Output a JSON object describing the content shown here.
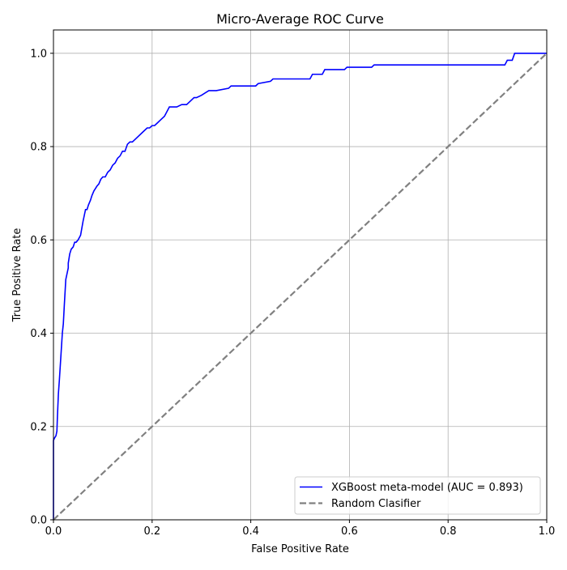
{
  "chart_data": {
    "type": "line",
    "title": "Micro-Average ROC Curve",
    "xlabel": "False Positive Rate",
    "ylabel": "True Positive Rate",
    "xlim": [
      0.0,
      1.0
    ],
    "ylim": [
      0.0,
      1.05
    ],
    "x_ticks": [
      0.0,
      0.2,
      0.4,
      0.6,
      0.8,
      1.0
    ],
    "y_ticks": [
      0.0,
      0.2,
      0.4,
      0.6,
      0.8,
      1.0
    ],
    "x_tick_labels": [
      "0.0",
      "0.2",
      "0.4",
      "0.6",
      "0.8",
      "1.0"
    ],
    "y_tick_labels": [
      "0.0",
      "0.2",
      "0.4",
      "0.6",
      "0.8",
      "1.0"
    ],
    "grid": true,
    "legend_position": "lower-right",
    "series": [
      {
        "name": "XGBoost meta-model (AUC = 0.893)",
        "color": "#0000ff",
        "style": "solid",
        "x": [
          0.0,
          0.0,
          0.002,
          0.005,
          0.007,
          0.008,
          0.01,
          0.012,
          0.015,
          0.018,
          0.02,
          0.022,
          0.025,
          0.028,
          0.03,
          0.03,
          0.033,
          0.036,
          0.04,
          0.043,
          0.046,
          0.05,
          0.055,
          0.06,
          0.062,
          0.065,
          0.068,
          0.071,
          0.075,
          0.078,
          0.082,
          0.085,
          0.088,
          0.092,
          0.096,
          0.1,
          0.105,
          0.11,
          0.115,
          0.12,
          0.125,
          0.13,
          0.135,
          0.14,
          0.145,
          0.15,
          0.155,
          0.16,
          0.165,
          0.17,
          0.18,
          0.185,
          0.19,
          0.195,
          0.2,
          0.205,
          0.21,
          0.22,
          0.225,
          0.23,
          0.235,
          0.24,
          0.25,
          0.26,
          0.27,
          0.28,
          0.285,
          0.29,
          0.3,
          0.315,
          0.33,
          0.355,
          0.36,
          0.41,
          0.415,
          0.44,
          0.445,
          0.52,
          0.525,
          0.545,
          0.55,
          0.59,
          0.595,
          0.645,
          0.65,
          0.75,
          0.8,
          0.915,
          0.92,
          0.93,
          0.935,
          1.0
        ],
        "y": [
          0.0,
          0.17,
          0.175,
          0.18,
          0.19,
          0.22,
          0.27,
          0.3,
          0.35,
          0.4,
          0.42,
          0.46,
          0.515,
          0.53,
          0.54,
          0.55,
          0.57,
          0.58,
          0.585,
          0.595,
          0.595,
          0.6,
          0.61,
          0.64,
          0.65,
          0.665,
          0.665,
          0.675,
          0.685,
          0.695,
          0.705,
          0.71,
          0.715,
          0.72,
          0.73,
          0.735,
          0.735,
          0.745,
          0.75,
          0.76,
          0.765,
          0.775,
          0.78,
          0.79,
          0.79,
          0.805,
          0.81,
          0.81,
          0.815,
          0.82,
          0.83,
          0.835,
          0.84,
          0.84,
          0.845,
          0.845,
          0.85,
          0.86,
          0.865,
          0.875,
          0.885,
          0.885,
          0.885,
          0.89,
          0.89,
          0.9,
          0.905,
          0.905,
          0.91,
          0.92,
          0.92,
          0.925,
          0.93,
          0.93,
          0.935,
          0.94,
          0.945,
          0.945,
          0.955,
          0.955,
          0.965,
          0.965,
          0.97,
          0.97,
          0.975,
          0.975,
          0.975,
          0.975,
          0.985,
          0.985,
          1.0,
          1.0
        ]
      },
      {
        "name": "Random Clasifier",
        "color": "#808080",
        "style": "dashed",
        "x": [
          0.0,
          1.0
        ],
        "y": [
          0.0,
          1.0
        ]
      }
    ]
  }
}
